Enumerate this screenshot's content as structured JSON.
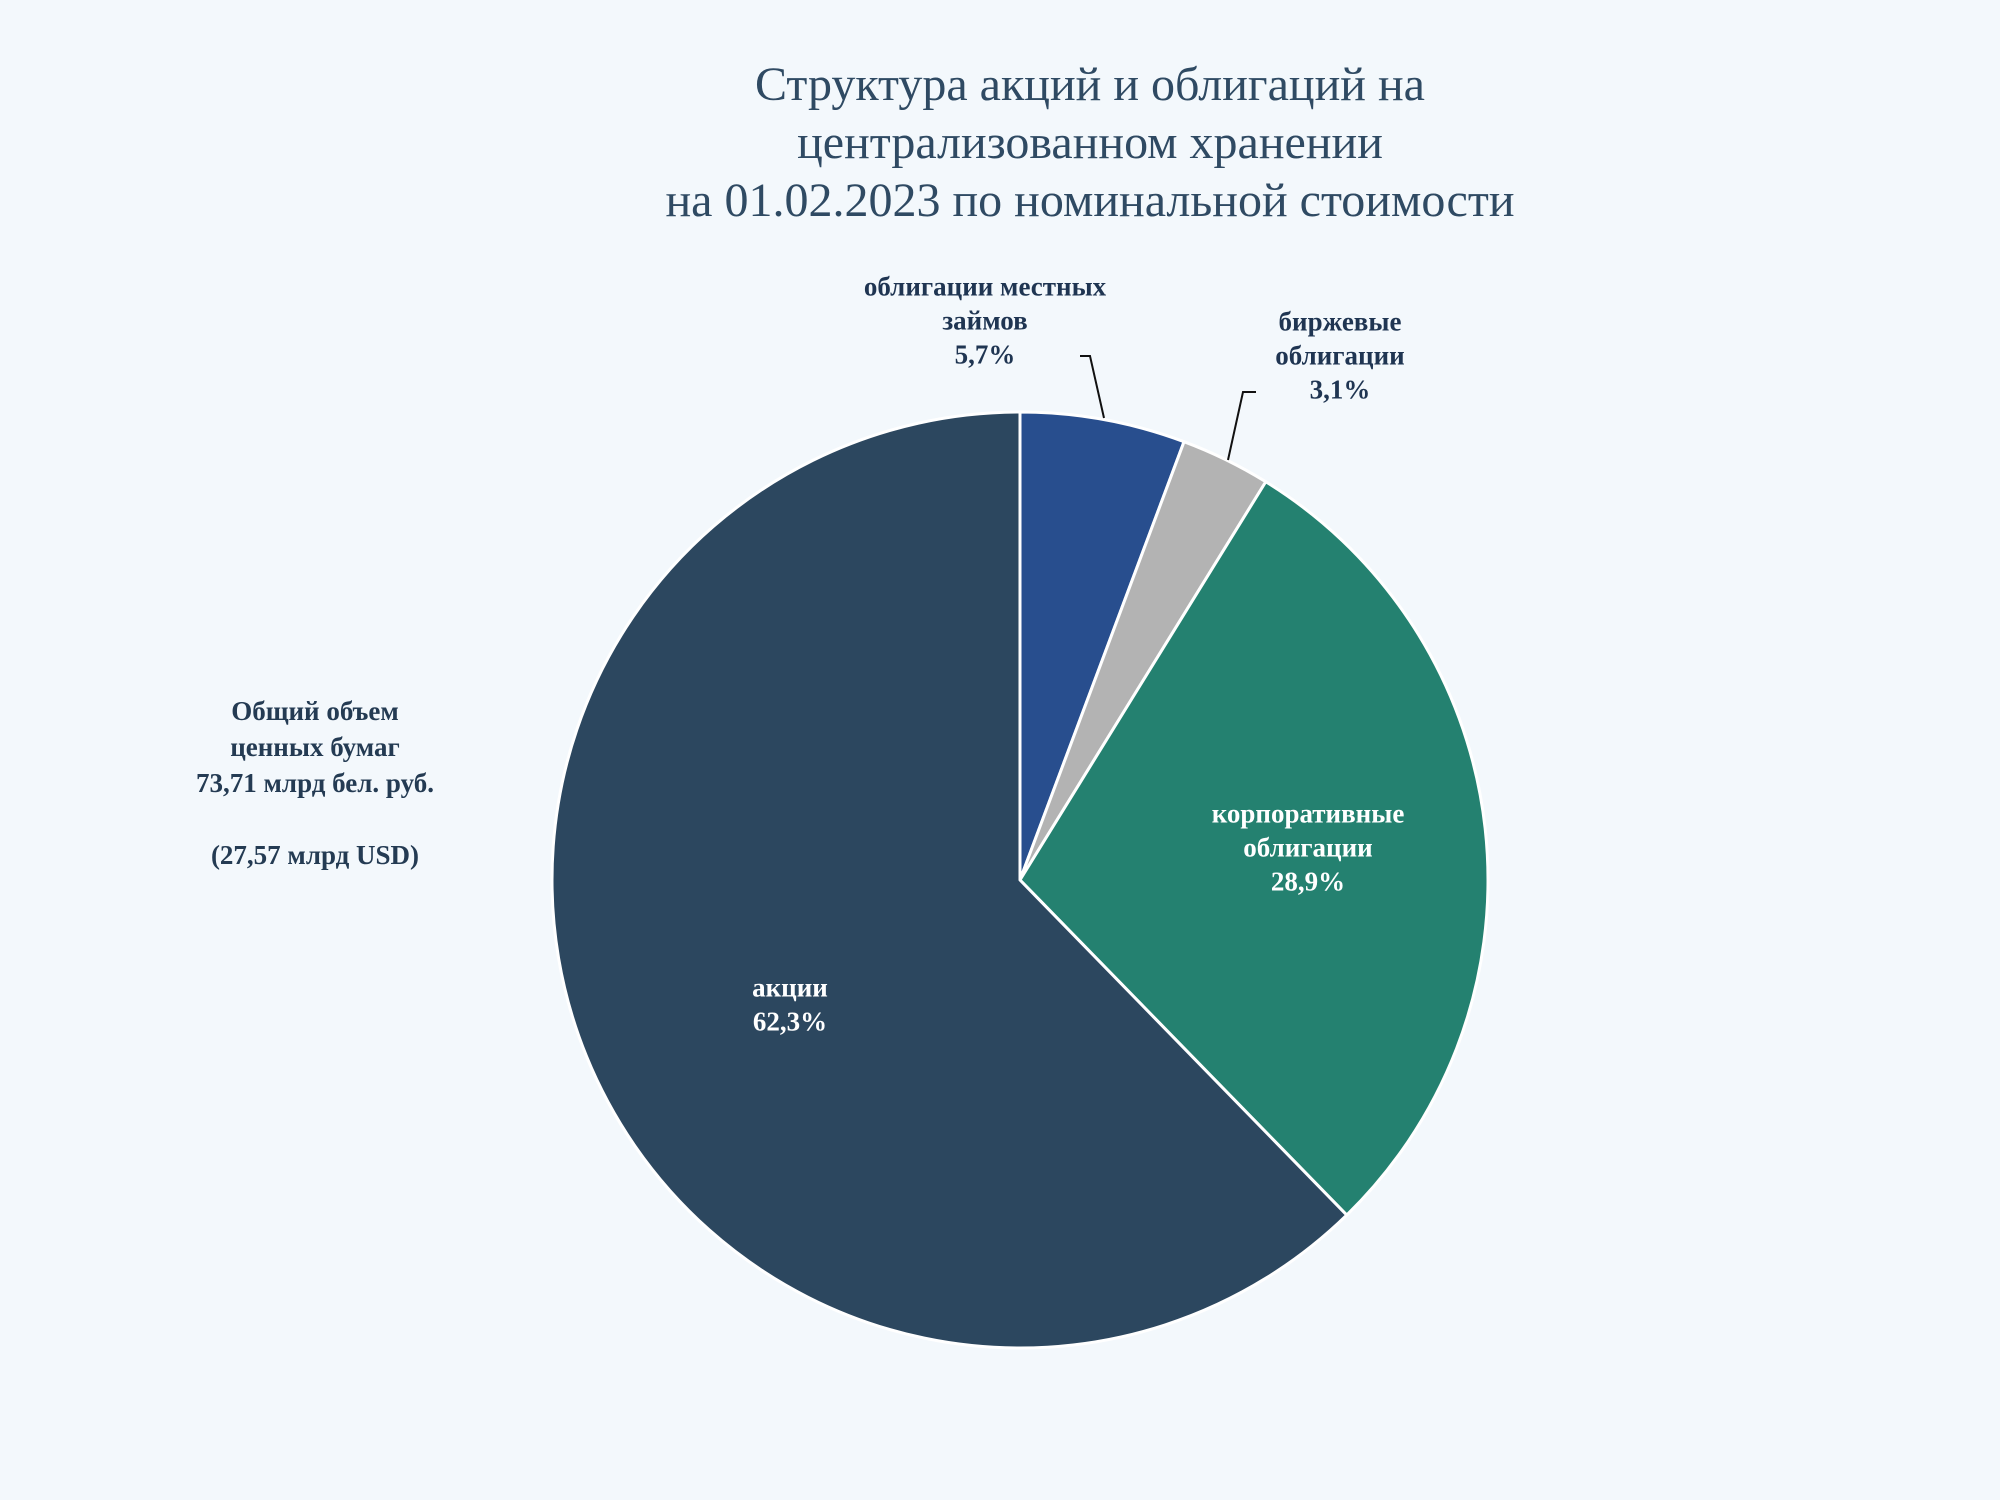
{
  "title": {
    "line1": "Структура акций и облигаций на",
    "line2": "централизованном хранении",
    "line3": "на 01.02.2023 по номинальной стоимости"
  },
  "summary": {
    "line1": "Общий объем",
    "line2": "ценных бумаг",
    "line3": "73,71  млрд бел. руб.",
    "line4": "(27,57  млрд USD)"
  },
  "chart_data": {
    "type": "pie",
    "title": "Структура акций и облигаций на централизованном хранении на 01.02.2023 по номинальной стоимости",
    "start_angle_deg": 0,
    "direction": "clockwise",
    "slices": [
      {
        "key": "local",
        "label_lines": [
          "облигации местных",
          "займов"
        ],
        "value": 5.7,
        "value_text": "5,7%",
        "color": "#284e8e",
        "label_placement": "outside"
      },
      {
        "key": "exchange",
        "label_lines": [
          "биржевые",
          "облигации"
        ],
        "value": 3.1,
        "value_text": "3,1%",
        "color": "#b3b3b3",
        "label_placement": "outside"
      },
      {
        "key": "corporate",
        "label_lines": [
          "корпоративные",
          "облигации"
        ],
        "value": 28.9,
        "value_text": "28,9%",
        "color": "#248170",
        "label_placement": "inside"
      },
      {
        "key": "shares",
        "label_lines": [
          "акции"
        ],
        "value": 62.3,
        "value_text": "62,3%",
        "color": "#2c475f",
        "label_placement": "inside"
      }
    ],
    "label_colors": {
      "inside": "#ffffff",
      "outside": "#1f3552"
    },
    "border_color": "#ffffff"
  }
}
